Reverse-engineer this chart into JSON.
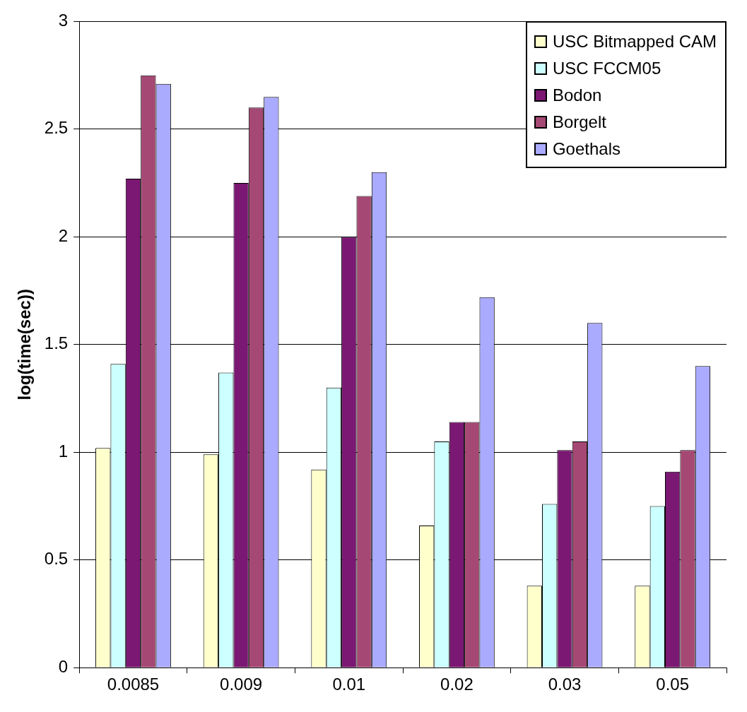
{
  "chart_data": {
    "type": "bar",
    "ylabel": "log(time(sec))",
    "categories": [
      "0.0085",
      "0.009",
      "0.01",
      "0.02",
      "0.03",
      "0.05"
    ],
    "series": [
      {
        "name": "USC Bitmapped CAM",
        "color": "#ffffcc",
        "values": [
          1.02,
          0.99,
          0.92,
          0.66,
          0.38,
          0.38
        ]
      },
      {
        "name": "USC FCCM05",
        "color": "#ccffff",
        "values": [
          1.41,
          1.37,
          1.3,
          1.05,
          0.76,
          0.75
        ]
      },
      {
        "name": "Bodon",
        "color": "#7b1873",
        "values": [
          2.27,
          2.25,
          2.0,
          1.14,
          1.01,
          0.91
        ]
      },
      {
        "name": "Borgelt",
        "color": "#a64874",
        "values": [
          2.75,
          2.6,
          2.19,
          1.14,
          1.05,
          1.01
        ]
      },
      {
        "name": "Goethals",
        "color": "#aaaaff",
        "values": [
          2.71,
          2.65,
          2.3,
          1.72,
          1.6,
          1.4
        ]
      }
    ],
    "ylim": [
      0,
      3
    ],
    "yticks": [
      0,
      0.5,
      1,
      1.5,
      2,
      2.5,
      3
    ],
    "grid": "y",
    "legend": "top right"
  }
}
